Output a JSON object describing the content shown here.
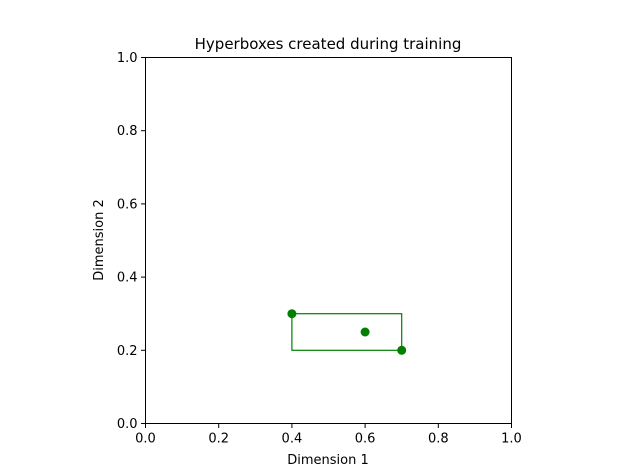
{
  "chart_data": {
    "type": "scatter",
    "title": "Hyperboxes created during training",
    "xlabel": "Dimension 1",
    "ylabel": "Dimension 2",
    "xlim": [
      0,
      1
    ],
    "ylim": [
      0,
      1
    ],
    "xticks": [
      "0.0",
      "0.2",
      "0.4",
      "0.6",
      "0.8",
      "1.0"
    ],
    "yticks": [
      "0.0",
      "0.2",
      "0.4",
      "0.6",
      "0.8",
      "1.0"
    ],
    "grid": false,
    "color": "#008000",
    "points": [
      {
        "x": 0.4,
        "y": 0.3
      },
      {
        "x": 0.6,
        "y": 0.25
      },
      {
        "x": 0.7,
        "y": 0.2
      }
    ],
    "hyperboxes": [
      {
        "x_min": 0.4,
        "x_max": 0.7,
        "y_min": 0.2,
        "y_max": 0.3
      }
    ]
  }
}
